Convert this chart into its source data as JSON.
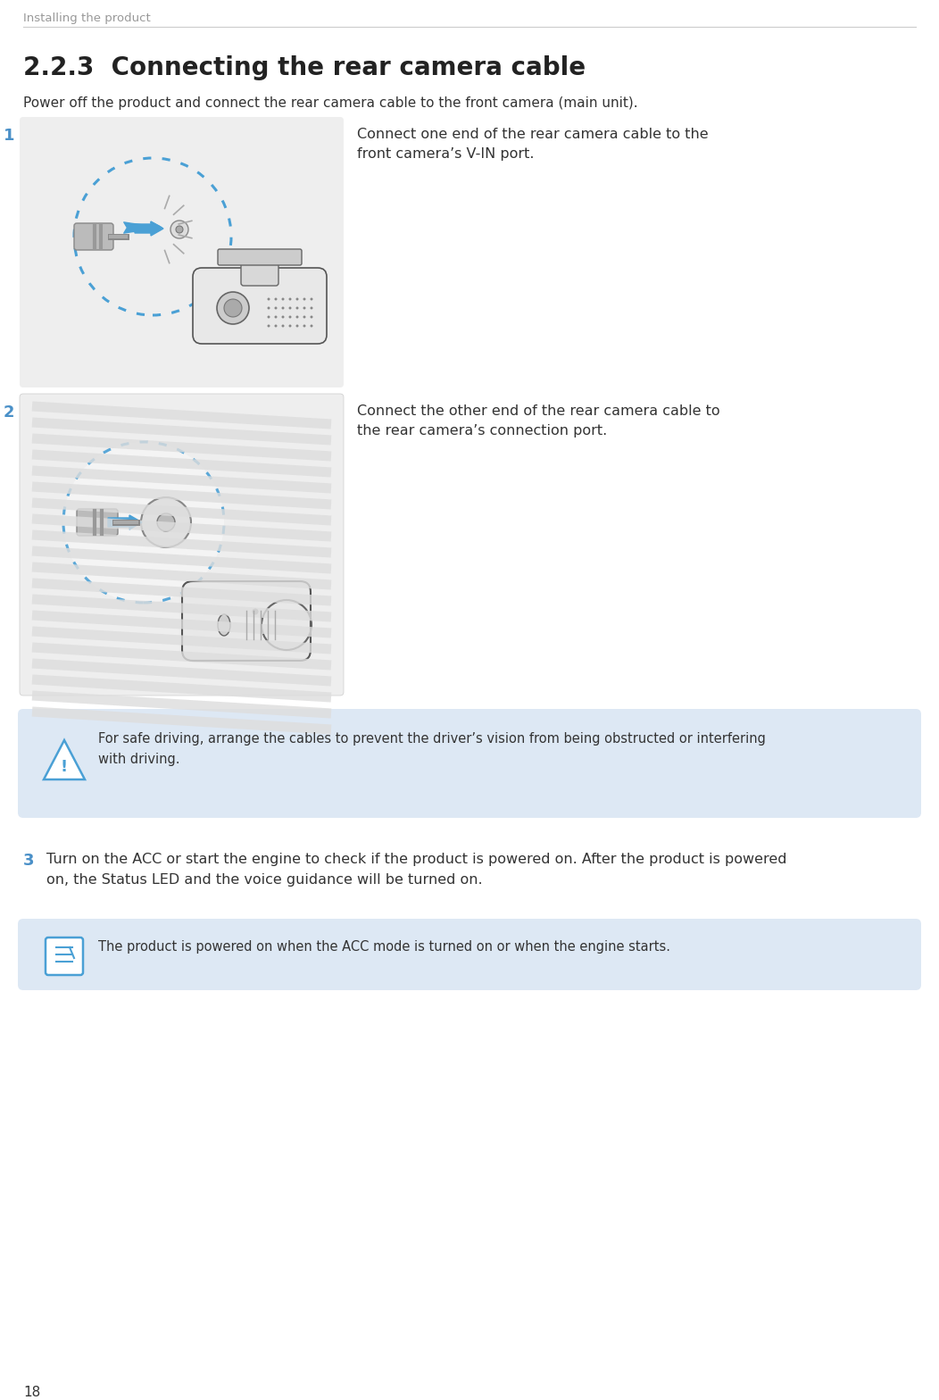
{
  "page_header": "Installing the product",
  "page_number": "18",
  "section_number": "2.2.3",
  "section_title": "  Connecting the rear camera cable",
  "intro_text": "Power off the product and connect the rear camera cable to the front camera (main unit).",
  "step1_num": "1",
  "step1_text": "Connect one end of the rear camera cable to the\nfront camera’s V-IN port.",
  "step2_num": "2",
  "step2_text": "Connect the other end of the rear camera cable to\nthe rear camera’s connection port.",
  "step3_num": "3",
  "step3_text": "Turn on the ACC or start the engine to check if the product is powered on. After the product is powered\non, the Status LED and the voice guidance will be turned on.",
  "warning_text": "For safe driving, arrange the cables to prevent the driver’s vision from being obstructed or interfering\nwith driving.",
  "note_text": "The product is powered on when the ACC mode is turned on or when the engine starts.",
  "bg_color": "#ffffff",
  "header_text_color": "#999999",
  "header_line_color": "#cccccc",
  "section_title_color": "#222222",
  "body_text_color": "#333333",
  "step_num_color": "#4a90c8",
  "image_box_bg": "#eeeeee",
  "image_box_border": "#cccccc",
  "warning_bg": "#dde8f4",
  "note_bg": "#dde8f4",
  "dotted_circle_color": "#4aa0d5",
  "blue_arrow_color": "#4aa0d5",
  "icon_color": "#4aa0d5"
}
